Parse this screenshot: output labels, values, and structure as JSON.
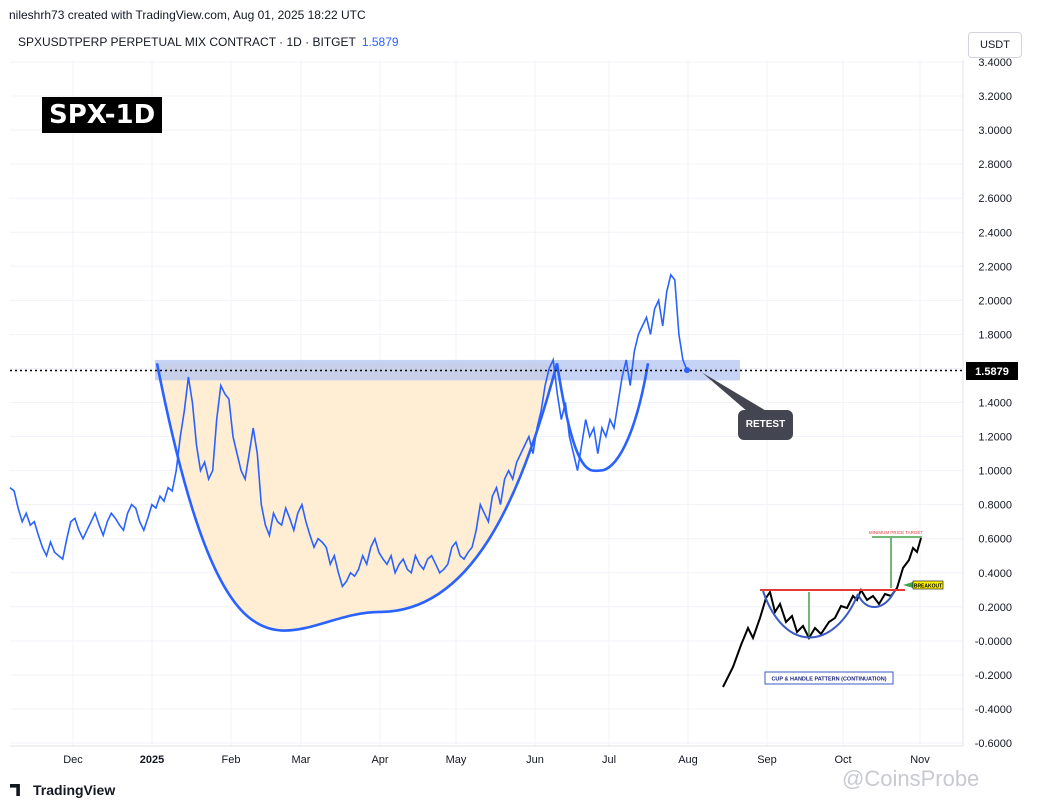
{
  "header": {
    "credit": "nileshrh73 created with TradingView.com, Aug 01, 2025 18:22 UTC",
    "symbol_line": "SPXUSDTPERP PERPETUAL MIX CONTRACT · 1D · BITGET",
    "last_price": "1.5879"
  },
  "unit_button": "USDT",
  "badge": "SPX-1D",
  "price_tag": "1.5879",
  "annotation_retest": "RETEST",
  "footer": {
    "brand": "TradingView",
    "watermark": "@CoinsProbe"
  },
  "colors": {
    "line": "#2962ff",
    "cup_fill": "#ffecd2",
    "zone": "#b4c4f0",
    "pattern_red": "#e53935",
    "pattern_green": "#43a047"
  },
  "chart_data": {
    "type": "line",
    "series": [
      {
        "values": [
          0.9,
          0.88,
          0.78,
          0.7,
          0.75,
          0.68,
          0.7,
          0.62,
          0.55,
          0.5,
          0.58,
          0.52,
          0.5,
          0.48,
          0.6,
          0.7,
          0.72,
          0.65,
          0.6,
          0.65,
          0.7,
          0.75,
          0.68,
          0.62,
          0.7,
          0.75,
          0.72,
          0.68,
          0.65,
          0.75,
          0.8,
          0.78,
          0.7,
          0.65,
          0.72,
          0.8,
          0.78,
          0.85,
          0.82,
          0.9,
          0.88,
          1.0,
          1.2,
          1.35,
          1.55,
          1.4,
          1.15,
          1.0,
          1.05,
          0.95,
          1.0,
          1.3,
          1.5,
          1.45,
          1.42,
          1.2,
          1.1,
          1.0,
          0.95,
          1.1,
          1.25,
          1.1,
          0.8,
          0.68,
          0.62,
          0.75,
          0.7,
          0.68,
          0.78,
          0.72,
          0.65,
          0.75,
          0.8,
          0.7,
          0.62,
          0.55,
          0.6,
          0.58,
          0.55,
          0.45,
          0.5,
          0.4,
          0.32,
          0.35,
          0.4,
          0.38,
          0.42,
          0.5,
          0.45,
          0.55,
          0.6,
          0.52,
          0.48,
          0.45,
          0.5,
          0.4,
          0.45,
          0.48,
          0.42,
          0.4,
          0.5,
          0.45,
          0.42,
          0.48,
          0.5,
          0.45,
          0.4,
          0.42,
          0.45,
          0.55,
          0.58,
          0.5,
          0.48,
          0.52,
          0.55,
          0.65,
          0.8,
          0.75,
          0.7,
          0.85,
          0.9,
          0.8,
          0.95,
          1.0,
          0.95,
          1.05,
          1.1,
          1.15,
          1.2,
          1.1,
          1.25,
          1.35,
          1.5,
          1.6,
          1.65,
          1.45,
          1.3,
          1.4,
          1.2,
          1.1,
          1.0,
          1.15,
          1.3,
          1.2,
          1.25,
          1.1,
          1.25,
          1.2,
          1.3,
          1.25,
          1.4,
          1.55,
          1.65,
          1.5,
          1.7,
          1.8,
          1.85,
          1.9,
          1.8,
          1.95,
          2.0,
          1.85,
          2.05,
          2.15,
          2.12,
          1.8,
          1.65,
          1.59
        ]
      }
    ],
    "x_ticks": [
      "Dec",
      "2025",
      "Feb",
      "Mar",
      "Apr",
      "May",
      "Jun",
      "Jul",
      "Aug",
      "Sep",
      "Oct",
      "Nov"
    ],
    "y_ticks": [
      "3.4000",
      "3.2000",
      "3.0000",
      "2.8000",
      "2.6000",
      "2.4000",
      "2.2000",
      "2.0000",
      "1.8000",
      "1.6000",
      "1.4000",
      "1.2000",
      "1.0000",
      "0.8000",
      "0.6000",
      "0.4000",
      "0.2000",
      "-0.0000",
      "-0.2000",
      "-0.4000",
      "-0.6000"
    ],
    "ylim": [
      -0.6,
      3.4
    ],
    "resistance_zone": [
      1.53,
      1.65
    ],
    "current_price": 1.5879,
    "inset_labels": {
      "target": "MINIMUM PRICE TARGET",
      "breakout": "BREAKOUT",
      "pattern": "CUP & HANDLE PATTERN (CONTINUATION)"
    }
  }
}
